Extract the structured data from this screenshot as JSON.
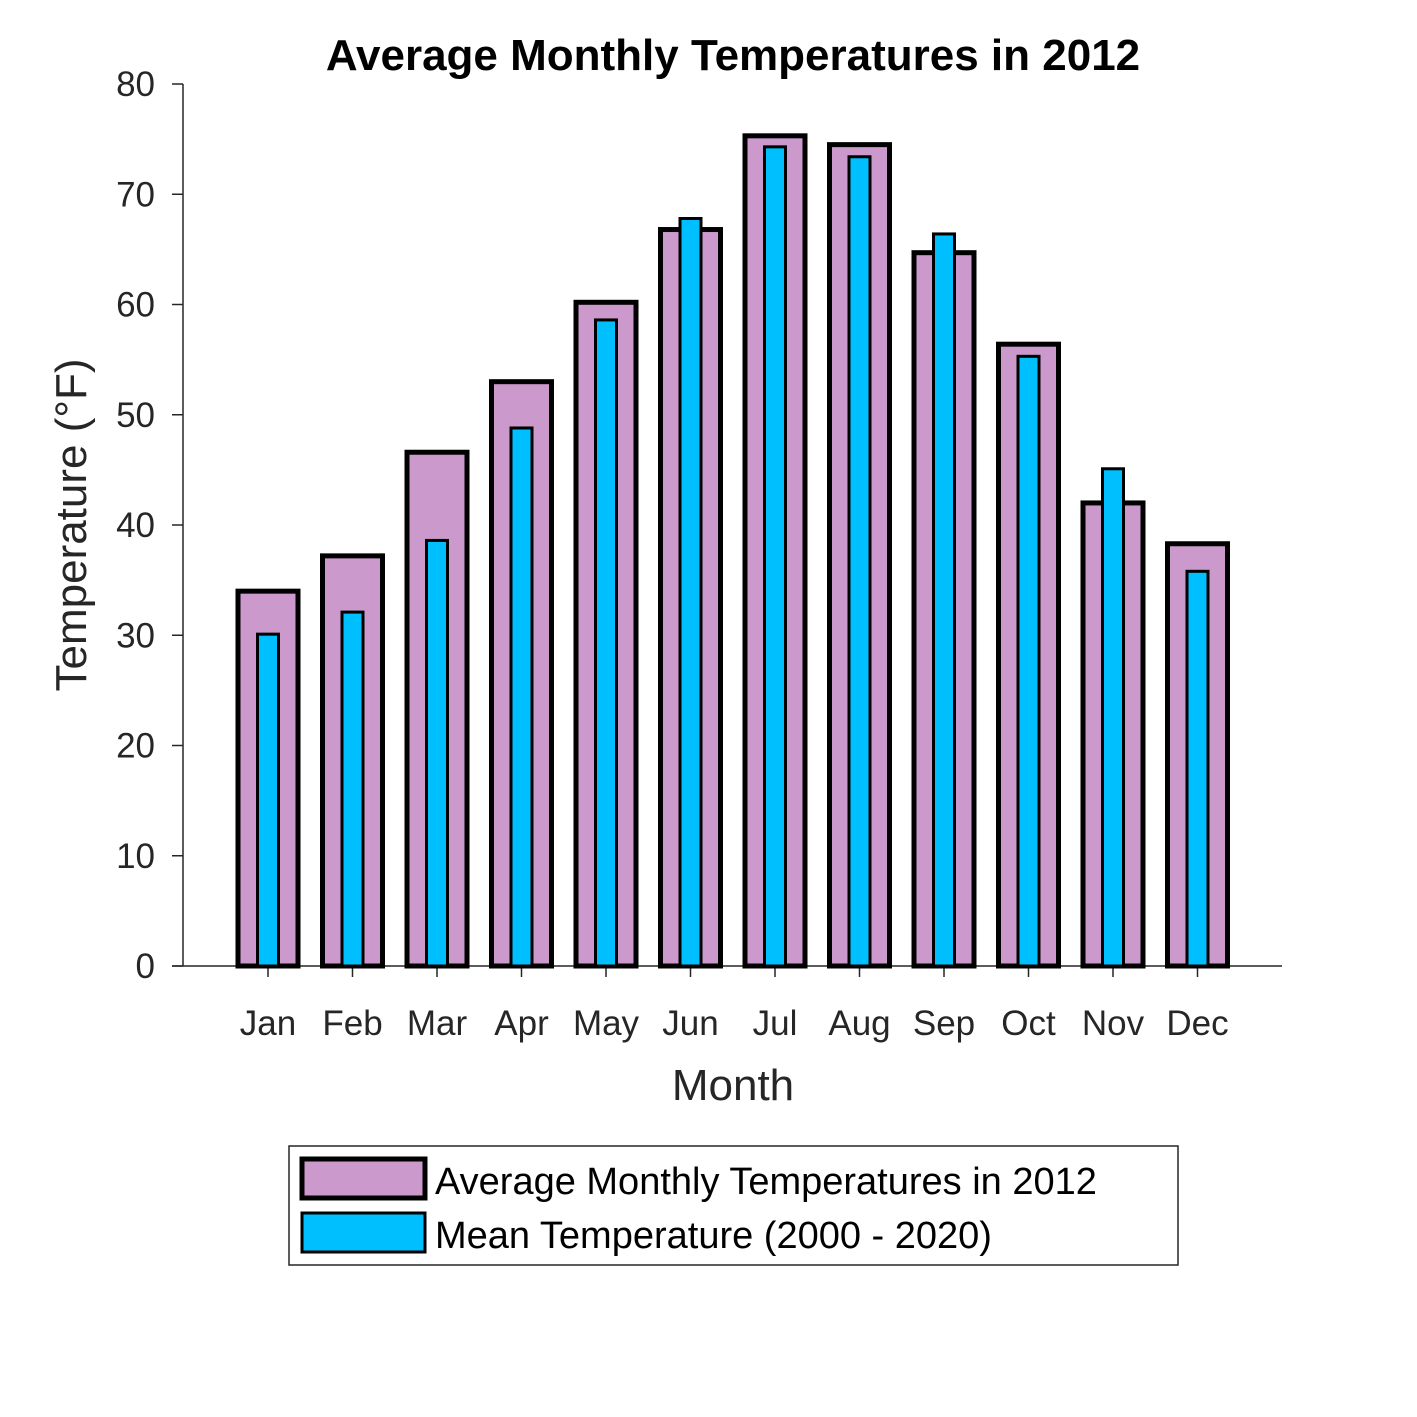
{
  "chart_data": {
    "type": "bar",
    "title": "Average Monthly Temperatures in 2012",
    "xlabel": "Month",
    "ylabel": "Temperature (°F)",
    "ylim": [
      0,
      80
    ],
    "yticks": [
      0,
      10,
      20,
      30,
      40,
      50,
      60,
      70,
      80
    ],
    "categories": [
      "Jan",
      "Feb",
      "Mar",
      "Apr",
      "May",
      "Jun",
      "Jul",
      "Aug",
      "Sep",
      "Oct",
      "Nov",
      "Dec"
    ],
    "grid": false,
    "legend_position": "bottom",
    "series": [
      {
        "name": "Average Monthly Temperatures in 2012",
        "color": "#cc99cc",
        "values": [
          34,
          37.2,
          46.6,
          53,
          60.2,
          66.8,
          75.3,
          74.5,
          64.7,
          56.4,
          42,
          38.3
        ]
      },
      {
        "name": "Mean Temperature (2000 - 2020)",
        "color": "#00bfff",
        "values": [
          30.1,
          32.1,
          38.6,
          48.8,
          58.6,
          67.8,
          74.3,
          73.4,
          66.4,
          55.3,
          45.1,
          35.8
        ]
      }
    ]
  }
}
